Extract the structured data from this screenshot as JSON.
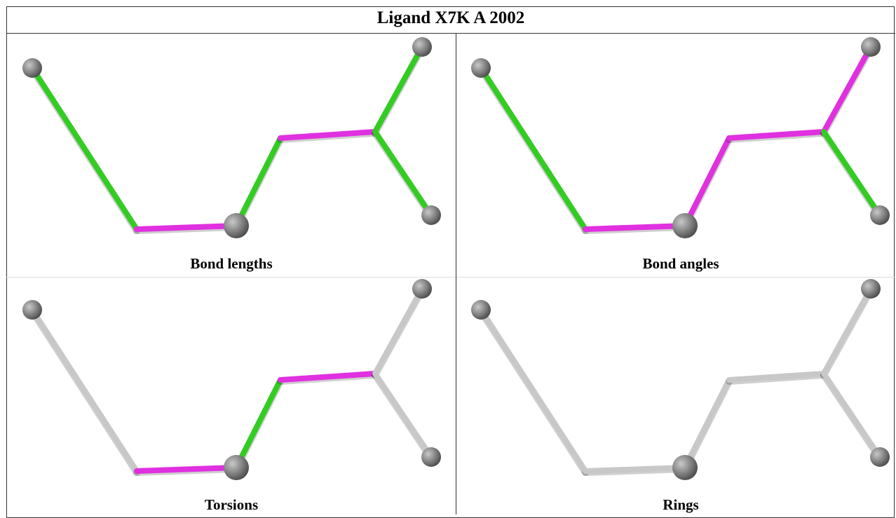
{
  "header": {
    "title": "Ligand X7K A 2002"
  },
  "panels": [
    {
      "label": "Bond lengths"
    },
    {
      "label": "Bond angles"
    },
    {
      "label": "Torsions"
    },
    {
      "label": "Rings"
    }
  ]
}
